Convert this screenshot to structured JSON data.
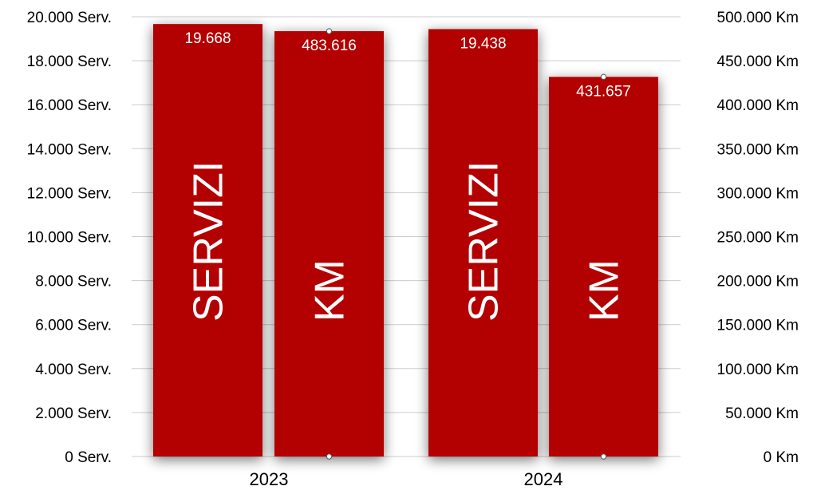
{
  "chart_data": {
    "type": "bar",
    "categories": [
      "2023",
      "2024"
    ],
    "series": [
      {
        "name": "SERVIZI",
        "axis": "left",
        "values": [
          19668,
          19438
        ],
        "labels": [
          "19.668",
          "19.438"
        ]
      },
      {
        "name": "KM",
        "axis": "right",
        "values": [
          483616,
          431657
        ],
        "labels": [
          "483.616",
          "431.657"
        ]
      }
    ],
    "y_left": {
      "range": [
        0,
        20000
      ],
      "ticks": [
        "0 Serv.",
        "2.000 Serv.",
        "4.000 Serv.",
        "6.000 Serv.",
        "8.000 Serv.",
        "10.000 Serv.",
        "12.000 Serv.",
        "14.000 Serv.",
        "16.000 Serv.",
        "18.000 Serv.",
        "20.000 Serv."
      ]
    },
    "y_right": {
      "range": [
        0,
        500000
      ],
      "ticks": [
        "0 Km",
        "50.000 Km",
        "100.000 Km",
        "150.000 Km",
        "200.000 Km",
        "250.000 Km",
        "300.000 Km",
        "350.000 Km",
        "400.000 Km",
        "450.000 Km",
        "500.000 Km"
      ]
    },
    "grid": true,
    "colors": {
      "bar": "#b30000",
      "grid": "#cccccc",
      "text": "#000000",
      "bar_text": "#ffffff"
    }
  }
}
